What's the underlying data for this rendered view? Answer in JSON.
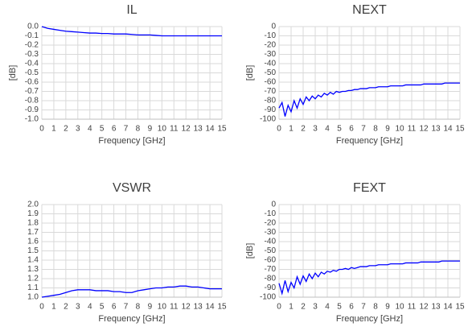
{
  "chart_data": [
    {
      "type": "line",
      "title": "IL",
      "x_label": "Frequency [GHz]",
      "y_label": "[dB]",
      "color": "#0000ff",
      "grid": true,
      "xlim": [
        0,
        15
      ],
      "xticks": [
        0,
        1,
        2,
        3,
        4,
        5,
        6,
        7,
        8,
        9,
        10,
        11,
        12,
        13,
        14,
        15
      ],
      "ylim": [
        -1,
        0
      ],
      "yticks": [
        {
          "value": 0,
          "label": "0.0"
        },
        -0.1,
        -0.2,
        -0.3,
        -0.4,
        -0.5,
        -0.6,
        -0.7,
        -0.8,
        -0.9,
        {
          "value": -1,
          "label": "-1.0"
        }
      ],
      "x": [
        0,
        0.5,
        1,
        1.5,
        2,
        2.5,
        3,
        3.5,
        4,
        4.5,
        5,
        5.5,
        6,
        6.5,
        7,
        7.5,
        8,
        8.5,
        9,
        9.5,
        10,
        10.5,
        11,
        11.5,
        12,
        12.5,
        13,
        13.5,
        14,
        14.5,
        15
      ],
      "values": [
        0,
        -0.02,
        -0.03,
        -0.04,
        -0.05,
        -0.055,
        -0.06,
        -0.065,
        -0.07,
        -0.07,
        -0.075,
        -0.075,
        -0.08,
        -0.08,
        -0.08,
        -0.085,
        -0.09,
        -0.09,
        -0.09,
        -0.095,
        -0.1,
        -0.1,
        -0.1,
        -0.1,
        -0.1,
        -0.1,
        -0.1,
        -0.1,
        -0.1,
        -0.1,
        -0.1
      ]
    },
    {
      "type": "line",
      "title": "NEXT",
      "x_label": "Frequency [GHz]",
      "y_label": "[dB]",
      "color": "#0000ff",
      "grid": true,
      "xlim": [
        0,
        15
      ],
      "xticks": [
        0,
        1,
        2,
        3,
        4,
        5,
        6,
        7,
        8,
        9,
        10,
        11,
        12,
        13,
        14,
        15
      ],
      "ylim": [
        -100,
        0
      ],
      "yticks": [
        0,
        -10,
        -20,
        -30,
        -40,
        -50,
        -60,
        -70,
        -80,
        -90,
        -100
      ],
      "x": [
        0,
        0.25,
        0.5,
        0.75,
        1,
        1.25,
        1.5,
        1.75,
        2,
        2.25,
        2.5,
        2.75,
        3,
        3.25,
        3.5,
        3.75,
        4,
        4.25,
        4.5,
        4.75,
        5,
        5.25,
        5.5,
        5.75,
        6,
        6.25,
        6.5,
        6.75,
        7,
        7.25,
        7.5,
        7.75,
        8,
        8.25,
        8.5,
        8.75,
        9,
        9.25,
        9.5,
        9.75,
        10,
        10.25,
        10.5,
        10.75,
        11,
        11.25,
        11.5,
        11.75,
        12,
        12.25,
        12.5,
        12.75,
        13,
        13.25,
        13.5,
        13.75,
        14,
        14.25,
        14.5,
        14.75,
        15
      ],
      "values": [
        -88,
        -82,
        -97,
        -85,
        -92,
        -80,
        -88,
        -78,
        -84,
        -76,
        -80,
        -75,
        -78,
        -74,
        -76,
        -72,
        -74,
        -71,
        -73,
        -70,
        -71,
        -70,
        -70,
        -69,
        -69,
        -68,
        -68,
        -67,
        -67,
        -67,
        -66,
        -66,
        -66,
        -65,
        -65,
        -65,
        -65,
        -64,
        -64,
        -64,
        -64,
        -64,
        -63,
        -63,
        -63,
        -63,
        -63,
        -63,
        -62,
        -62,
        -62,
        -62,
        -62,
        -62,
        -62,
        -61,
        -61,
        -61,
        -61,
        -61,
        -61
      ]
    },
    {
      "type": "line",
      "title": "VSWR",
      "x_label": "Frequency [GHz]",
      "color": "#0000ff",
      "grid": true,
      "xlim": [
        0,
        15
      ],
      "xticks": [
        0,
        1,
        2,
        3,
        4,
        5,
        6,
        7,
        8,
        9,
        10,
        11,
        12,
        13,
        14,
        15
      ],
      "ylim": [
        1,
        2
      ],
      "yticks": [
        {
          "value": 1,
          "label": "1.0"
        },
        1.1,
        1.2,
        1.3,
        1.4,
        1.5,
        1.6,
        1.7,
        1.8,
        1.9,
        {
          "value": 2,
          "label": "2.0"
        }
      ],
      "x": [
        0,
        0.5,
        1,
        1.5,
        2,
        2.5,
        3,
        3.5,
        4,
        4.5,
        5,
        5.5,
        6,
        6.5,
        7,
        7.5,
        8,
        8.5,
        9,
        9.5,
        10,
        10.5,
        11,
        11.5,
        12,
        12.5,
        13,
        13.5,
        14,
        14.5,
        15
      ],
      "values": [
        1,
        1.01,
        1.02,
        1.03,
        1.05,
        1.07,
        1.08,
        1.08,
        1.08,
        1.07,
        1.07,
        1.07,
        1.06,
        1.06,
        1.05,
        1.05,
        1.07,
        1.08,
        1.09,
        1.1,
        1.1,
        1.11,
        1.11,
        1.12,
        1.12,
        1.11,
        1.11,
        1.1,
        1.09,
        1.09,
        1.09
      ]
    },
    {
      "type": "line",
      "title": "FEXT",
      "x_label": "Frequency [GHz]",
      "y_label": "[dB]",
      "color": "#0000ff",
      "grid": true,
      "xlim": [
        0,
        15
      ],
      "xticks": [
        0,
        1,
        2,
        3,
        4,
        5,
        6,
        7,
        8,
        9,
        10,
        11,
        12,
        13,
        14,
        15
      ],
      "ylim": [
        -100,
        0
      ],
      "yticks": [
        0,
        -10,
        -20,
        -30,
        -40,
        -50,
        -60,
        -70,
        -80,
        -90,
        -100
      ],
      "x": [
        0,
        0.25,
        0.5,
        0.75,
        1,
        1.25,
        1.5,
        1.75,
        2,
        2.25,
        2.5,
        2.75,
        3,
        3.25,
        3.5,
        3.75,
        4,
        4.25,
        4.5,
        4.75,
        5,
        5.25,
        5.5,
        5.75,
        6,
        6.25,
        6.5,
        6.75,
        7,
        7.25,
        7.5,
        7.75,
        8,
        8.25,
        8.5,
        8.75,
        9,
        9.25,
        9.5,
        9.75,
        10,
        10.25,
        10.5,
        10.75,
        11,
        11.25,
        11.5,
        11.75,
        12,
        12.25,
        12.5,
        12.75,
        13,
        13.25,
        13.5,
        13.75,
        14,
        14.25,
        14.5,
        14.75,
        15
      ],
      "values": [
        -85,
        -96,
        -82,
        -94,
        -84,
        -90,
        -78,
        -86,
        -77,
        -83,
        -75,
        -80,
        -74,
        -78,
        -73,
        -75,
        -72,
        -73,
        -71,
        -72,
        -70,
        -70,
        -69,
        -70,
        -68,
        -69,
        -68,
        -67,
        -67,
        -67,
        -66,
        -66,
        -66,
        -65,
        -65,
        -65,
        -65,
        -64,
        -64,
        -64,
        -64,
        -64,
        -63,
        -63,
        -63,
        -63,
        -63,
        -62,
        -62,
        -62,
        -62,
        -62,
        -62,
        -62,
        -61,
        -61,
        -61,
        -61,
        -61,
        -61,
        -61
      ]
    }
  ]
}
